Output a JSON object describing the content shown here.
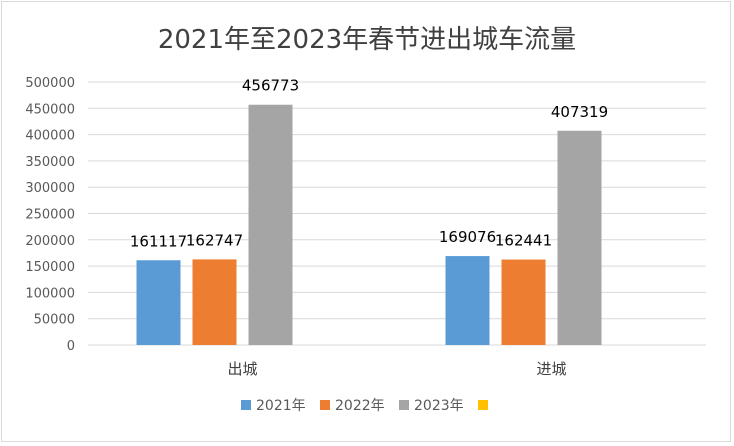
{
  "chart_data": {
    "type": "bar",
    "title": "2021年至2023年春节进出城车流量",
    "categories": [
      "出城",
      "进城"
    ],
    "series": [
      {
        "name": "2021年",
        "values": [
          161117,
          169076
        ],
        "color": "#5b9bd5"
      },
      {
        "name": "2022年",
        "values": [
          162747,
          162441
        ],
        "color": "#ed7d31"
      },
      {
        "name": "2023年",
        "values": [
          456773,
          407319
        ],
        "color": "#a5a5a5"
      },
      {
        "name": "",
        "values": [
          null,
          null
        ],
        "color": "#ffc000"
      }
    ],
    "ylim": [
      0,
      500000
    ],
    "yticks": [
      "0",
      "50000",
      "100000",
      "150000",
      "200000",
      "250000",
      "300000",
      "350000",
      "400000",
      "450000",
      "500000"
    ],
    "grid": true,
    "legend": "bottom",
    "xlabel": "",
    "ylabel": ""
  }
}
